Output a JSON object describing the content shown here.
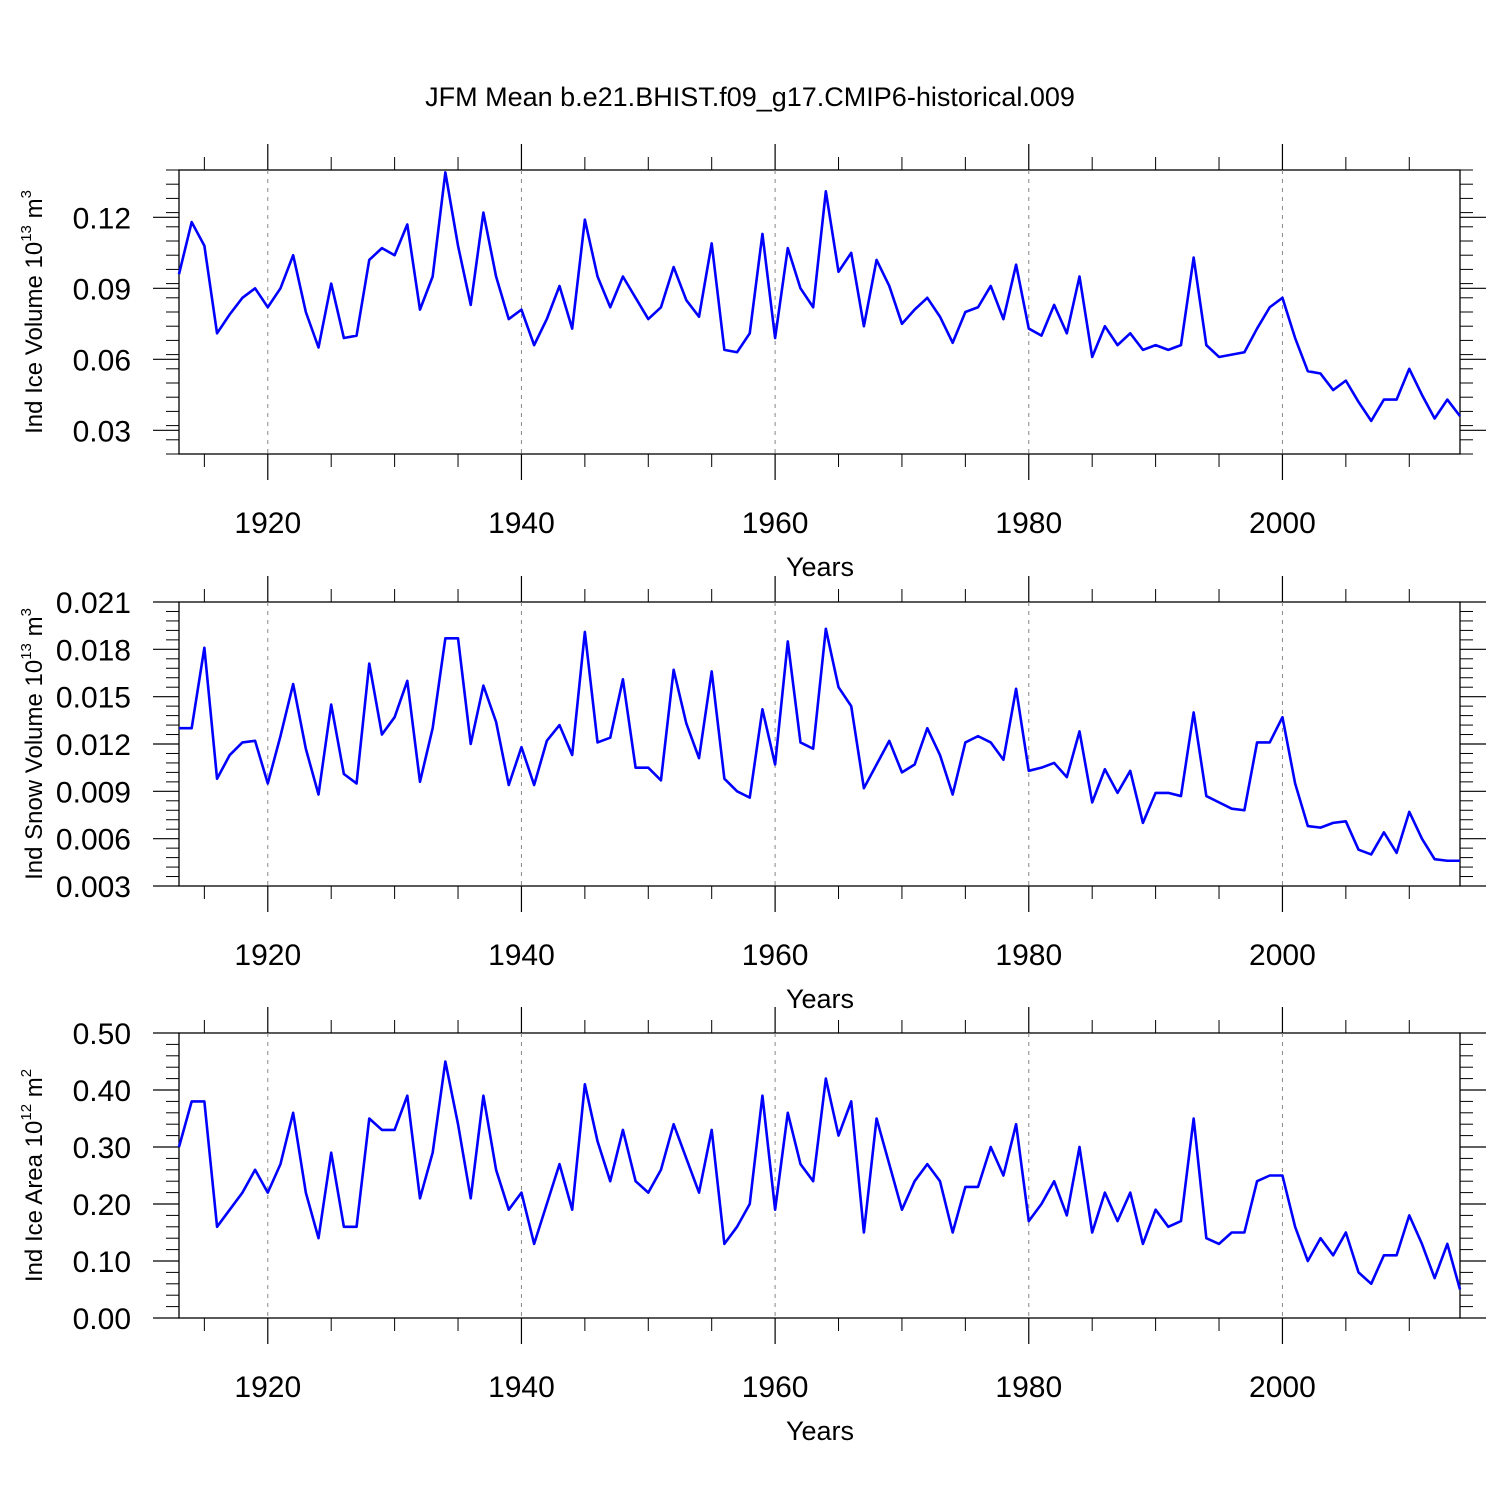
{
  "figure": {
    "title": "JFM Mean b.e21.BHIST.f09_g17.CMIP6-historical.009"
  },
  "chart_data": [
    {
      "type": "line",
      "title": "",
      "xlabel": "Years",
      "ylabel": "Ind Ice Volume 10",
      "ylabel_exp": "13",
      "ylabel_unit": "m",
      "ylabel_unit_exp": "3",
      "xlim": [
        1913,
        2014
      ],
      "ylim": [
        0.02,
        0.14
      ],
      "xticks": [
        "1920",
        "1940",
        "1960",
        "1980",
        "2000"
      ],
      "yticks": [
        "0.03",
        "0.06",
        "0.09",
        "0.12"
      ],
      "grid": "vertical dashed at major x ticks",
      "series": [
        {
          "name": "Ind Ice Volume",
          "color": "#0000ff",
          "x": [
            1913,
            1914,
            1915,
            1916,
            1917,
            1918,
            1919,
            1920,
            1921,
            1922,
            1923,
            1924,
            1925,
            1926,
            1927,
            1928,
            1929,
            1930,
            1931,
            1932,
            1933,
            1934,
            1935,
            1936,
            1937,
            1938,
            1939,
            1940,
            1941,
            1942,
            1943,
            1944,
            1945,
            1946,
            1947,
            1948,
            1949,
            1950,
            1951,
            1952,
            1953,
            1954,
            1955,
            1956,
            1957,
            1958,
            1959,
            1960,
            1961,
            1962,
            1963,
            1964,
            1965,
            1966,
            1967,
            1968,
            1969,
            1970,
            1971,
            1972,
            1973,
            1974,
            1975,
            1976,
            1977,
            1978,
            1979,
            1980,
            1981,
            1982,
            1983,
            1984,
            1985,
            1986,
            1987,
            1988,
            1989,
            1990,
            1991,
            1992,
            1993,
            1994,
            1995,
            1996,
            1997,
            1998,
            1999,
            2000,
            2001,
            2002,
            2003,
            2004,
            2005,
            2006,
            2007,
            2008,
            2009,
            2010,
            2011,
            2012,
            2013,
            2014
          ],
          "values": [
            0.096,
            0.118,
            0.108,
            0.071,
            0.079,
            0.086,
            0.09,
            0.082,
            0.09,
            0.104,
            0.08,
            0.065,
            0.092,
            0.069,
            0.07,
            0.102,
            0.107,
            0.104,
            0.117,
            0.081,
            0.095,
            0.139,
            0.108,
            0.083,
            0.122,
            0.095,
            0.077,
            0.081,
            0.066,
            0.077,
            0.091,
            0.073,
            0.119,
            0.095,
            0.082,
            0.095,
            0.086,
            0.077,
            0.082,
            0.099,
            0.085,
            0.078,
            0.109,
            0.064,
            0.063,
            0.071,
            0.113,
            0.069,
            0.107,
            0.09,
            0.082,
            0.131,
            0.097,
            0.105,
            0.074,
            0.102,
            0.091,
            0.075,
            0.081,
            0.086,
            0.078,
            0.067,
            0.08,
            0.082,
            0.091,
            0.077,
            0.1,
            0.073,
            0.07,
            0.083,
            0.071,
            0.095,
            0.061,
            0.074,
            0.066,
            0.071,
            0.064,
            0.066,
            0.064,
            0.066,
            0.103,
            0.066,
            0.061,
            0.062,
            0.063,
            0.073,
            0.082,
            0.086,
            0.069,
            0.055,
            0.054,
            0.047,
            0.051,
            0.042,
            0.034,
            0.043,
            0.043,
            0.056,
            0.045,
            0.035,
            0.043,
            0.036
          ]
        }
      ]
    },
    {
      "type": "line",
      "title": "",
      "xlabel": "Years",
      "ylabel": "Ind Snow Volume 10",
      "ylabel_exp": "13",
      "ylabel_unit": "m",
      "ylabel_unit_exp": "3",
      "xlim": [
        1913,
        2014
      ],
      "ylim": [
        0.003,
        0.021
      ],
      "xticks": [
        "1920",
        "1940",
        "1960",
        "1980",
        "2000"
      ],
      "yticks": [
        "0.003",
        "0.006",
        "0.009",
        "0.012",
        "0.015",
        "0.018",
        "0.021"
      ],
      "grid": "vertical dashed at major x ticks",
      "series": [
        {
          "name": "Ind Snow Volume",
          "color": "#0000ff",
          "x": [
            1913,
            1914,
            1915,
            1916,
            1917,
            1918,
            1919,
            1920,
            1921,
            1922,
            1923,
            1924,
            1925,
            1926,
            1927,
            1928,
            1929,
            1930,
            1931,
            1932,
            1933,
            1934,
            1935,
            1936,
            1937,
            1938,
            1939,
            1940,
            1941,
            1942,
            1943,
            1944,
            1945,
            1946,
            1947,
            1948,
            1949,
            1950,
            1951,
            1952,
            1953,
            1954,
            1955,
            1956,
            1957,
            1958,
            1959,
            1960,
            1961,
            1962,
            1963,
            1964,
            1965,
            1966,
            1967,
            1968,
            1969,
            1970,
            1971,
            1972,
            1973,
            1974,
            1975,
            1976,
            1977,
            1978,
            1979,
            1980,
            1981,
            1982,
            1983,
            1984,
            1985,
            1986,
            1987,
            1988,
            1989,
            1990,
            1991,
            1992,
            1993,
            1994,
            1995,
            1996,
            1997,
            1998,
            1999,
            2000,
            2001,
            2002,
            2003,
            2004,
            2005,
            2006,
            2007,
            2008,
            2009,
            2010,
            2011,
            2012,
            2013,
            2014
          ],
          "values": [
            0.013,
            0.013,
            0.0181,
            0.0098,
            0.0113,
            0.0121,
            0.0122,
            0.0095,
            0.0125,
            0.0158,
            0.0117,
            0.0088,
            0.0145,
            0.0101,
            0.0095,
            0.0171,
            0.0126,
            0.0137,
            0.016,
            0.0096,
            0.013,
            0.0187,
            0.0187,
            0.012,
            0.0157,
            0.0134,
            0.0094,
            0.0118,
            0.0094,
            0.0122,
            0.0132,
            0.0113,
            0.0191,
            0.0121,
            0.0124,
            0.0161,
            0.0105,
            0.0105,
            0.0097,
            0.0167,
            0.0133,
            0.0111,
            0.0166,
            0.0098,
            0.009,
            0.0086,
            0.0142,
            0.0107,
            0.0185,
            0.0121,
            0.0117,
            0.0193,
            0.0156,
            0.0144,
            0.0092,
            0.0107,
            0.0122,
            0.0102,
            0.0107,
            0.013,
            0.0113,
            0.0088,
            0.0121,
            0.0125,
            0.0121,
            0.011,
            0.0155,
            0.0103,
            0.0105,
            0.0108,
            0.0099,
            0.0128,
            0.0083,
            0.0104,
            0.0089,
            0.0103,
            0.007,
            0.0089,
            0.0089,
            0.0087,
            0.014,
            0.0087,
            0.0083,
            0.0079,
            0.0078,
            0.0121,
            0.0121,
            0.0137,
            0.0095,
            0.0068,
            0.0067,
            0.007,
            0.0071,
            0.0053,
            0.005,
            0.0064,
            0.0051,
            0.0077,
            0.006,
            0.0047,
            0.0046,
            0.0046
          ]
        }
      ]
    },
    {
      "type": "line",
      "title": "",
      "xlabel": "Years",
      "ylabel": "Ind Ice Area 10",
      "ylabel_exp": "12",
      "ylabel_unit": "m",
      "ylabel_unit_exp": "2",
      "xlim": [
        1913,
        2014
      ],
      "ylim": [
        0.0,
        0.5
      ],
      "xticks": [
        "1920",
        "1940",
        "1960",
        "1980",
        "2000"
      ],
      "yticks": [
        "0.00",
        "0.10",
        "0.20",
        "0.30",
        "0.40",
        "0.50"
      ],
      "grid": "vertical dashed at major x ticks",
      "series": [
        {
          "name": "Ind Ice Area",
          "color": "#0000ff",
          "x": [
            1913,
            1914,
            1915,
            1916,
            1917,
            1918,
            1919,
            1920,
            1921,
            1922,
            1923,
            1924,
            1925,
            1926,
            1927,
            1928,
            1929,
            1930,
            1931,
            1932,
            1933,
            1934,
            1935,
            1936,
            1937,
            1938,
            1939,
            1940,
            1941,
            1942,
            1943,
            1944,
            1945,
            1946,
            1947,
            1948,
            1949,
            1950,
            1951,
            1952,
            1953,
            1954,
            1955,
            1956,
            1957,
            1958,
            1959,
            1960,
            1961,
            1962,
            1963,
            1964,
            1965,
            1966,
            1967,
            1968,
            1969,
            1970,
            1971,
            1972,
            1973,
            1974,
            1975,
            1976,
            1977,
            1978,
            1979,
            1980,
            1981,
            1982,
            1983,
            1984,
            1985,
            1986,
            1987,
            1988,
            1989,
            1990,
            1991,
            1992,
            1993,
            1994,
            1995,
            1996,
            1997,
            1998,
            1999,
            2000,
            2001,
            2002,
            2003,
            2004,
            2005,
            2006,
            2007,
            2008,
            2009,
            2010,
            2011,
            2012,
            2013,
            2014
          ],
          "values": [
            0.3,
            0.38,
            0.38,
            0.16,
            0.19,
            0.22,
            0.26,
            0.22,
            0.27,
            0.36,
            0.22,
            0.14,
            0.29,
            0.16,
            0.16,
            0.35,
            0.33,
            0.33,
            0.39,
            0.21,
            0.29,
            0.45,
            0.34,
            0.21,
            0.39,
            0.26,
            0.19,
            0.22,
            0.13,
            0.2,
            0.27,
            0.19,
            0.41,
            0.31,
            0.24,
            0.33,
            0.24,
            0.22,
            0.26,
            0.34,
            0.28,
            0.22,
            0.33,
            0.13,
            0.16,
            0.2,
            0.39,
            0.19,
            0.36,
            0.27,
            0.24,
            0.42,
            0.32,
            0.38,
            0.15,
            0.35,
            0.27,
            0.19,
            0.24,
            0.27,
            0.24,
            0.15,
            0.23,
            0.23,
            0.3,
            0.25,
            0.34,
            0.17,
            0.2,
            0.24,
            0.18,
            0.3,
            0.15,
            0.22,
            0.17,
            0.22,
            0.13,
            0.19,
            0.16,
            0.17,
            0.35,
            0.14,
            0.13,
            0.15,
            0.15,
            0.24,
            0.25,
            0.25,
            0.16,
            0.1,
            0.14,
            0.11,
            0.15,
            0.08,
            0.06,
            0.11,
            0.11,
            0.18,
            0.13,
            0.07,
            0.13,
            0.05
          ]
        }
      ]
    }
  ]
}
